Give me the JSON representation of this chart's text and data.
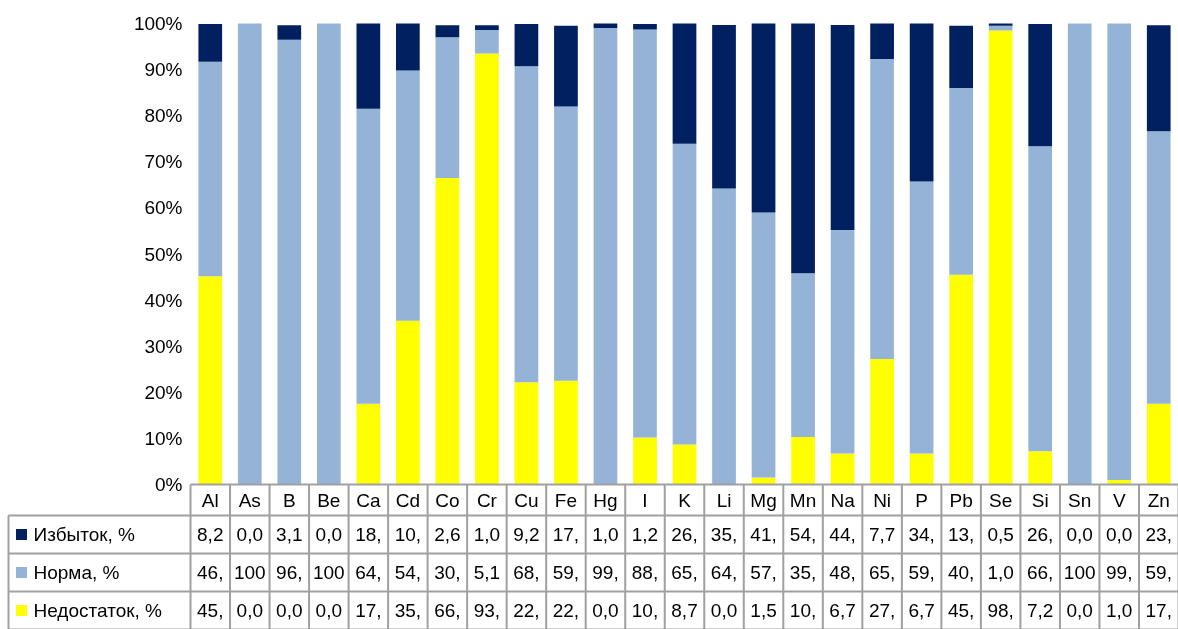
{
  "chart_data": {
    "type": "bar",
    "stacked": true,
    "categories": [
      "Al",
      "As",
      "B",
      "Be",
      "Ca",
      "Cd",
      "Co",
      "Cr",
      "Cu",
      "Fe",
      "Hg",
      "I",
      "K",
      "Li",
      "Mg",
      "Mn",
      "Na",
      "Ni",
      "P",
      "Pb",
      "Se",
      "Si",
      "Sn",
      "V",
      "Zn"
    ],
    "series": [
      {
        "name": "Недостаток, %",
        "color": "#ffff00",
        "values": [
          45.2,
          0,
          0,
          0,
          17.5,
          35.5,
          66.5,
          93.5,
          22.2,
          22.5,
          0,
          10.2,
          8.7,
          0,
          1.5,
          10.3,
          6.7,
          27.2,
          6.7,
          45.5,
          98.5,
          7.2,
          0,
          1.0,
          17.5
        ],
        "value_labels": [
          "45,",
          "0,0",
          "0,0",
          "0,0",
          "17,",
          "35,",
          "66,",
          "93,",
          "22,",
          "22,",
          "0,0",
          "10,",
          "8,7",
          "0,0",
          "1,5",
          "10,",
          "6,7",
          "27,",
          "6,7",
          "45,",
          "98,",
          "7,2",
          "0,0",
          "1,0",
          "17,"
        ]
      },
      {
        "name": "Норма, %",
        "color": "#95b3d7",
        "values": [
          46.5,
          100,
          96.5,
          100,
          64.0,
          54.3,
          30.5,
          5.1,
          68.5,
          59.5,
          99.0,
          88.5,
          65.2,
          64.2,
          57.5,
          35.5,
          48.5,
          65.1,
          59.0,
          40.5,
          1.0,
          66.2,
          100,
          99.0,
          59.1
        ],
        "value_labels": [
          "46,",
          "100",
          "96,",
          "100",
          "64,",
          "54,",
          "30,",
          "5,1",
          "68,",
          "59,",
          "99,",
          "88,",
          "65,",
          "64,",
          "57,",
          "35,",
          "48,",
          "65,",
          "59,",
          "40,",
          "1,0",
          "66,",
          "100",
          "99,",
          "59,"
        ]
      },
      {
        "name": "Избыток, %",
        "color": "#002060",
        "values": [
          8.2,
          0,
          3.1,
          0,
          18.5,
          10.2,
          2.6,
          1.0,
          9.2,
          17.5,
          1.0,
          1.2,
          26.1,
          35.5,
          41.0,
          54.2,
          44.5,
          7.7,
          34.3,
          13.5,
          0.5,
          26.5,
          0,
          0,
          23.0
        ],
        "value_labels": [
          "8,2",
          "0,0",
          "3,1",
          "0,0",
          "18,",
          "10,",
          "2,6",
          "1,0",
          "9,2",
          "17,",
          "1,0",
          "1,2",
          "26,",
          "35,",
          "41,",
          "54,",
          "44,",
          "7,7",
          "34,",
          "13,",
          "0,5",
          "26,",
          "0,0",
          "0,0",
          "23,"
        ]
      }
    ],
    "ylim": [
      0,
      100
    ],
    "yticks": [
      {
        "value": 0,
        "label": "0%"
      },
      {
        "value": 10,
        "label": "10%"
      },
      {
        "value": 20,
        "label": "20%"
      },
      {
        "value": 30,
        "label": "30%"
      },
      {
        "value": 40,
        "label": "40%"
      },
      {
        "value": 50,
        "label": "50%"
      },
      {
        "value": 60,
        "label": "60%"
      },
      {
        "value": 70,
        "label": "70%"
      },
      {
        "value": 80,
        "label": "80%"
      },
      {
        "value": 90,
        "label": "90%"
      },
      {
        "value": 100,
        "label": "100%"
      }
    ],
    "grid": false,
    "legend": "bottom"
  }
}
